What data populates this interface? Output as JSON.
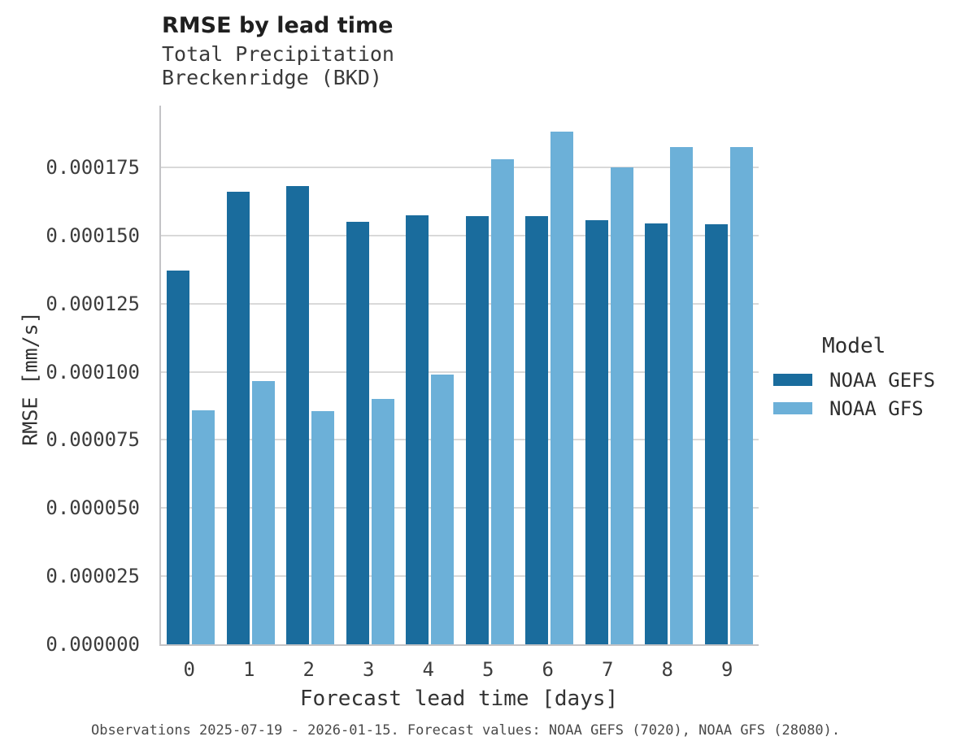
{
  "chart_data": {
    "type": "bar",
    "title": "RMSE by lead time",
    "subtitle": [
      "Total Precipitation",
      "Breckenridge (BKD)"
    ],
    "xlabel": "Forecast lead time [days]",
    "ylabel": "RMSE [mm/s]",
    "categories": [
      "0",
      "1",
      "2",
      "3",
      "4",
      "5",
      "6",
      "7",
      "8",
      "9"
    ],
    "series": [
      {
        "name": "NOAA GEFS",
        "color": "#1a6c9d",
        "values": [
          0.000137,
          0.000166,
          0.000168,
          0.000155,
          0.0001575,
          0.000157,
          0.000157,
          0.0001555,
          0.0001545,
          0.000154
        ]
      },
      {
        "name": "NOAA GFS",
        "color": "#6cb0d8",
        "values": [
          8.6e-05,
          9.65e-05,
          8.55e-05,
          9e-05,
          9.9e-05,
          0.000178,
          0.000188,
          0.000175,
          0.0001825,
          0.0001825
        ]
      }
    ],
    "ylim": [
      0,
      0.000195
    ],
    "yticks": [
      0,
      2.5e-05,
      5e-05,
      7.5e-05,
      0.0001,
      0.000125,
      0.00015,
      0.000175
    ],
    "ytick_labels": [
      "0.000000",
      "0.000025",
      "0.000050",
      "0.000075",
      "0.000100",
      "0.000125",
      "0.000150",
      "0.000175"
    ],
    "grid": "horizontal-major",
    "legend_position": "right",
    "legend": {
      "title": "Model"
    },
    "caption": "Observations 2025-07-19 - 2026-01-15. Forecast values: NOAA GEFS (7020), NOAA GFS (28080).",
    "colors": {
      "gefs_dark_blue": "#1a6c9d",
      "gfs_light_blue": "#6cb0d8",
      "gridline_gray": "#d9d9d9",
      "axis_gray": "#c3c3c6"
    }
  }
}
